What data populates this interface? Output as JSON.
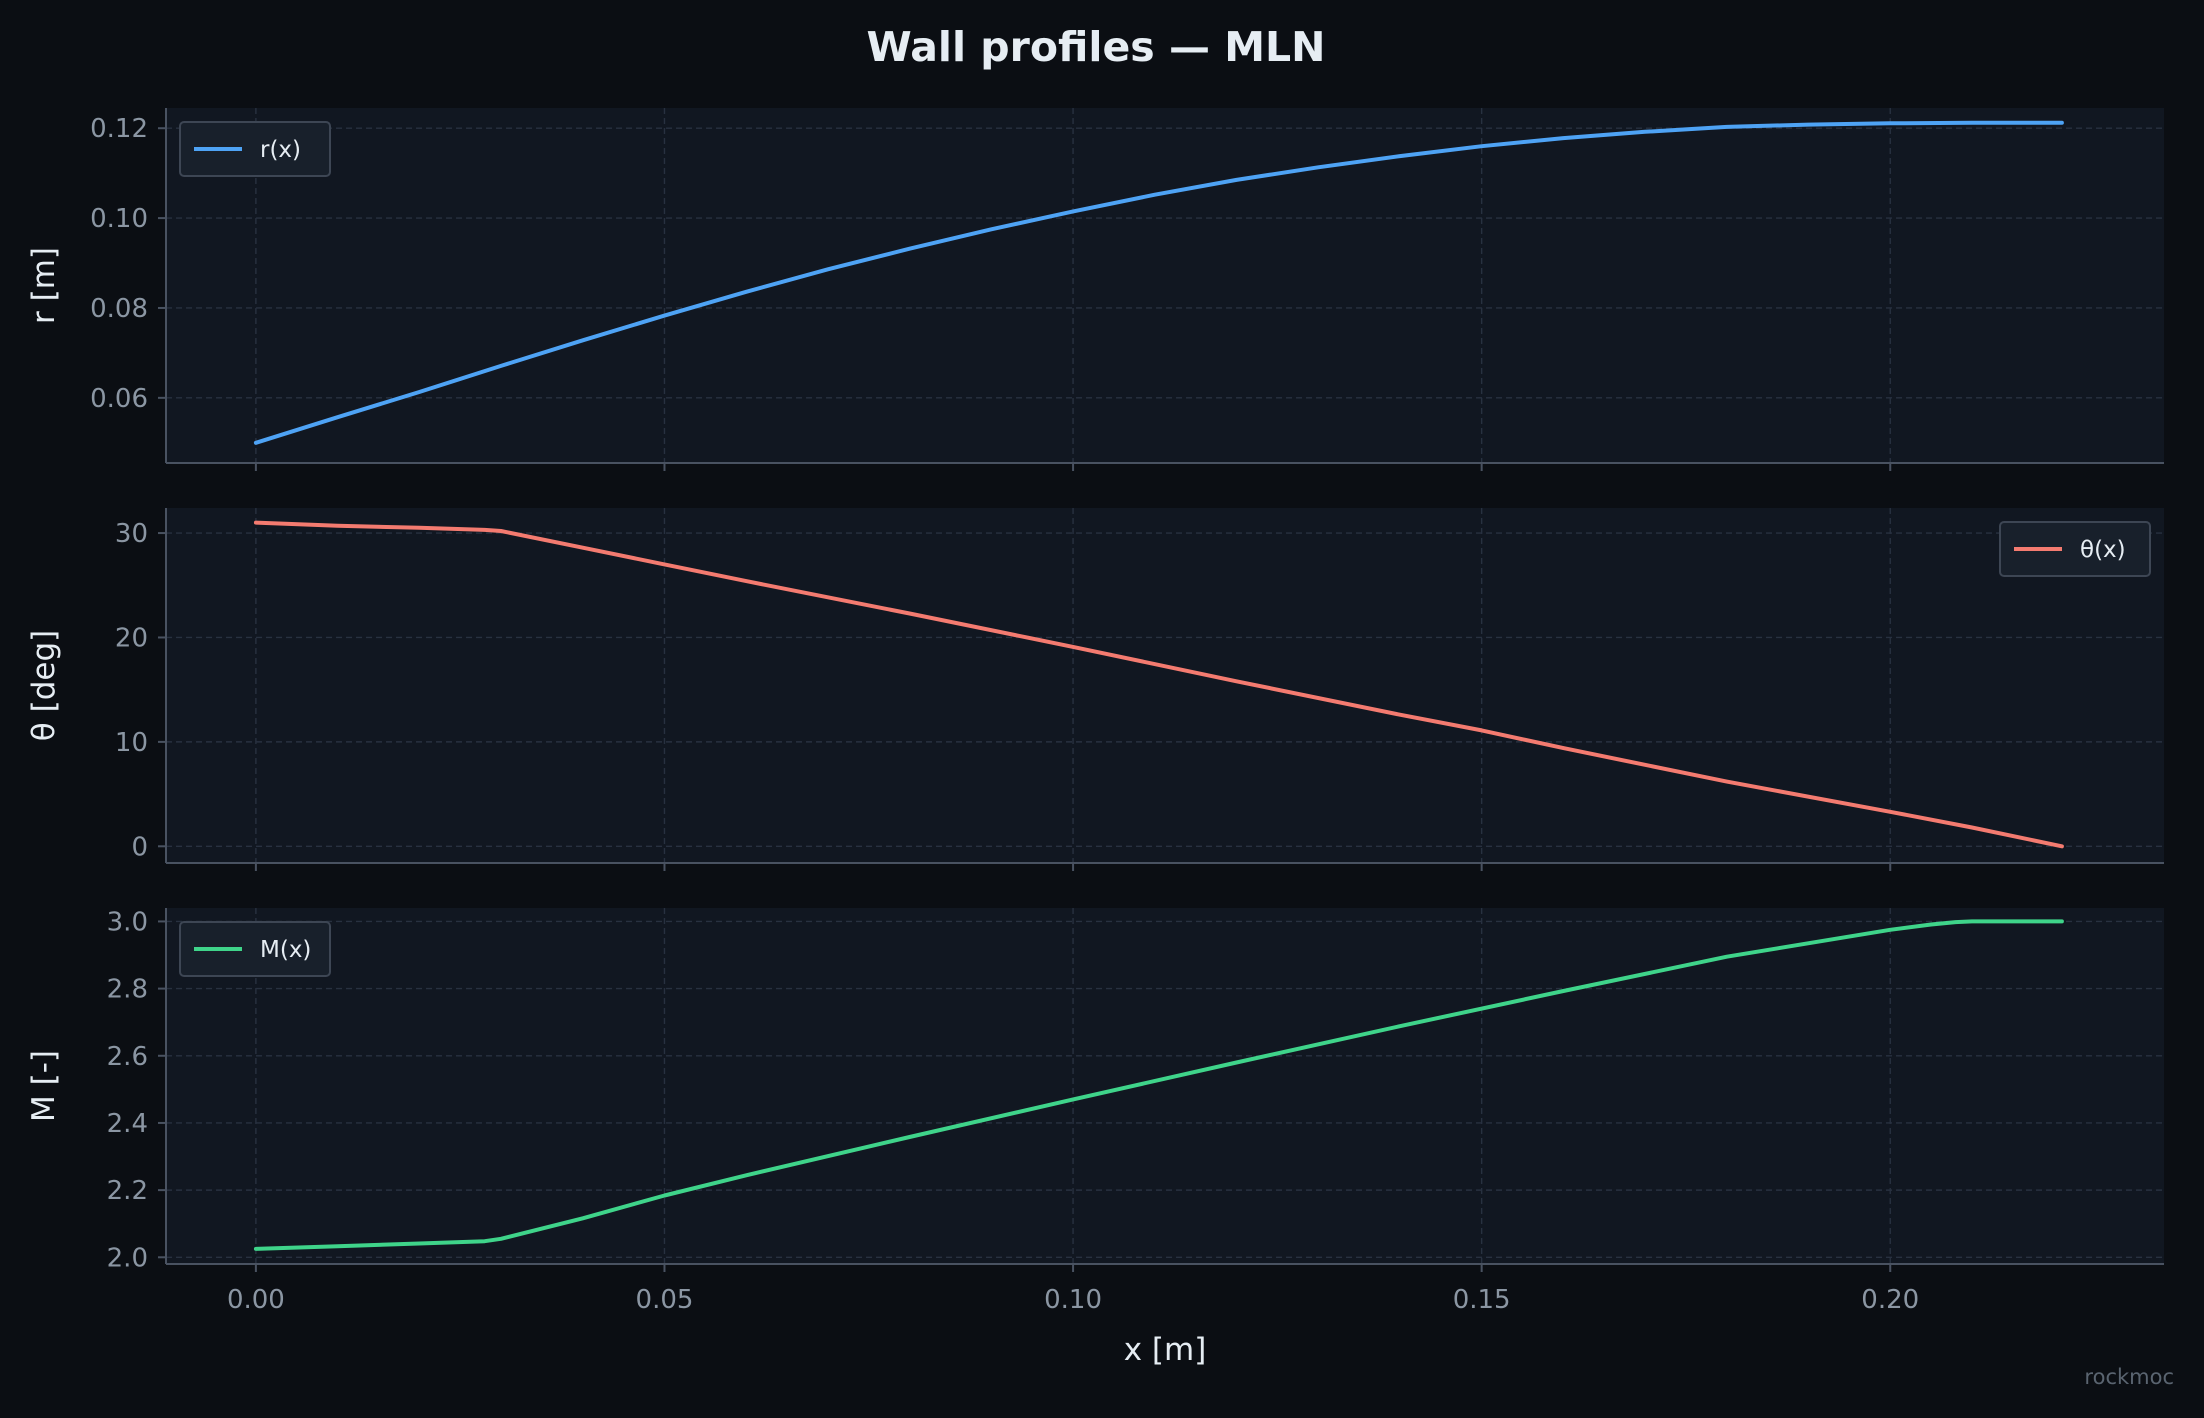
{
  "title": "Wall profiles — MLN",
  "credit": "rockmoc",
  "colors": {
    "figure_bg": "#0b0e13",
    "axes_bg": "#111721",
    "grid": "#283140",
    "spine": "#495261",
    "tick_text": "#8b96a3",
    "label_text": "#e6edf3",
    "legend_bg": "#18202b",
    "legend_border": "#3d4654"
  },
  "chart_data": [
    {
      "type": "line",
      "ylabel": "r [m]",
      "xlim": [
        -0.011,
        0.2335
      ],
      "ylim": [
        0.0455,
        0.1245
      ],
      "yticks": [
        0.06,
        0.08,
        0.1,
        0.12
      ],
      "ytick_labels": [
        "0.06",
        "0.08",
        "0.10",
        "0.12"
      ],
      "legend_position": "upper-left",
      "series": [
        {
          "name": "r(x)",
          "color": "#4ea3f5",
          "x": [
            0,
            0.01,
            0.02,
            0.03,
            0.04,
            0.05,
            0.06,
            0.07,
            0.08,
            0.09,
            0.1,
            0.11,
            0.12,
            0.13,
            0.14,
            0.15,
            0.16,
            0.17,
            0.18,
            0.19,
            0.2,
            0.21,
            0.221
          ],
          "y": [
            0.05,
            0.0557,
            0.0613,
            0.0671,
            0.0728,
            0.0783,
            0.0836,
            0.0886,
            0.0932,
            0.0975,
            0.1015,
            0.1052,
            0.1085,
            0.1113,
            0.1138,
            0.116,
            0.1178,
            0.1192,
            0.1203,
            0.1208,
            0.1211,
            0.1212,
            0.1212
          ]
        }
      ]
    },
    {
      "type": "line",
      "ylabel": "θ [deg]",
      "xlim": [
        -0.011,
        0.2335
      ],
      "ylim": [
        -1.6,
        32.4
      ],
      "yticks": [
        0,
        10,
        20,
        30
      ],
      "ytick_labels": [
        "0",
        "10",
        "20",
        "30"
      ],
      "legend_position": "upper-right",
      "series": [
        {
          "name": "θ(x)",
          "color": "#f47b70",
          "x": [
            0,
            0.01,
            0.02,
            0.028,
            0.03,
            0.04,
            0.05,
            0.06,
            0.08,
            0.1,
            0.12,
            0.14,
            0.15,
            0.16,
            0.18,
            0.2,
            0.21,
            0.221
          ],
          "y": [
            31.0,
            30.7,
            30.5,
            30.3,
            30.2,
            28.6,
            27.0,
            25.4,
            22.3,
            19.1,
            15.8,
            12.6,
            11.1,
            9.4,
            6.2,
            3.3,
            1.8,
            0.0
          ]
        }
      ]
    },
    {
      "type": "line",
      "ylabel": "M [-]",
      "xlabel": "x [m]",
      "xlim": [
        -0.011,
        0.2335
      ],
      "ylim": [
        1.98,
        3.04
      ],
      "yticks": [
        2.0,
        2.2,
        2.4,
        2.6,
        2.8,
        3.0
      ],
      "ytick_labels": [
        "2.0",
        "2.2",
        "2.4",
        "2.6",
        "2.8",
        "3.0"
      ],
      "xticks": [
        0.0,
        0.05,
        0.1,
        0.15,
        0.2
      ],
      "xtick_labels": [
        "0.00",
        "0.05",
        "0.10",
        "0.15",
        "0.20"
      ],
      "legend_position": "upper-left",
      "series": [
        {
          "name": "M(x)",
          "color": "#3fd48a",
          "x": [
            0,
            0.01,
            0.02,
            0.028,
            0.03,
            0.04,
            0.05,
            0.06,
            0.08,
            0.1,
            0.12,
            0.14,
            0.16,
            0.18,
            0.2,
            0.205,
            0.208,
            0.21,
            0.221
          ],
          "y": [
            2.025,
            2.033,
            2.041,
            2.048,
            2.055,
            2.116,
            2.184,
            2.244,
            2.358,
            2.47,
            2.58,
            2.688,
            2.793,
            2.895,
            2.975,
            2.991,
            2.998,
            3.0,
            3.0
          ]
        }
      ]
    }
  ]
}
